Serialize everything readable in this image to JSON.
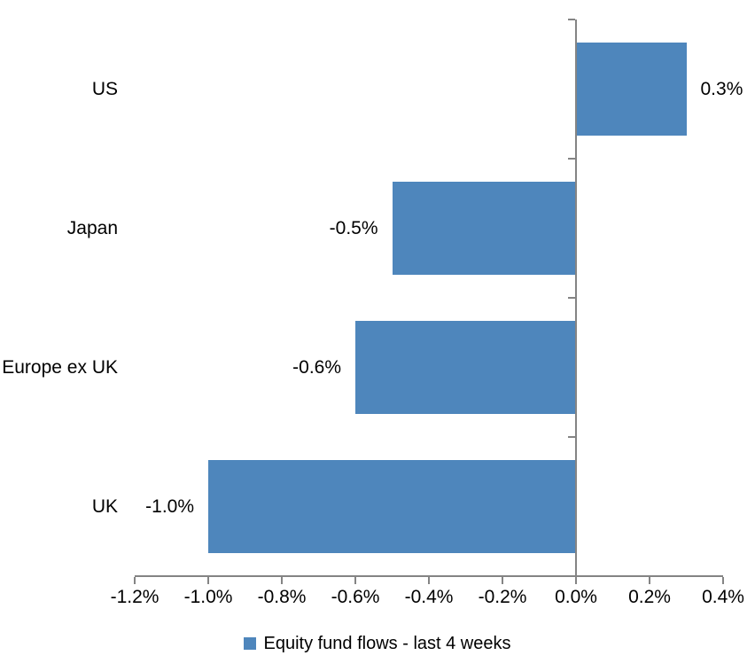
{
  "chart_data": {
    "type": "bar",
    "orientation": "horizontal",
    "title": "",
    "xlabel": "",
    "ylabel": "",
    "categories": [
      "US",
      "Japan",
      "Europe ex UK",
      "UK"
    ],
    "values": [
      0.3,
      -0.5,
      -0.6,
      -1.0
    ],
    "value_unit": "%",
    "data_labels": [
      "0.3%",
      "-0.5%",
      "-0.6%",
      "-1.0%"
    ],
    "series": [
      {
        "name": "Equity fund flows - last 4 weeks",
        "values": [
          0.3,
          -0.5,
          -0.6,
          -1.0
        ]
      }
    ],
    "xlim": [
      -1.2,
      0.4
    ],
    "x_tick_values": [
      -1.2,
      -1.0,
      -0.8,
      -0.6,
      -0.4,
      -0.2,
      0.0,
      0.2,
      0.4
    ],
    "x_tick_labels": [
      "-1.2%",
      "-1.0%",
      "-0.8%",
      "-0.6%",
      "-0.4%",
      "-0.2%",
      "0.0%",
      "0.2%",
      "0.4%"
    ],
    "grid": false,
    "legend": {
      "position": "bottom",
      "label": "Equity fund flows - last 4 weeks"
    },
    "colors": {
      "bar": "#4E86BC",
      "axis": "#848484",
      "text": "#000000",
      "background": "#FFFFFF"
    }
  }
}
